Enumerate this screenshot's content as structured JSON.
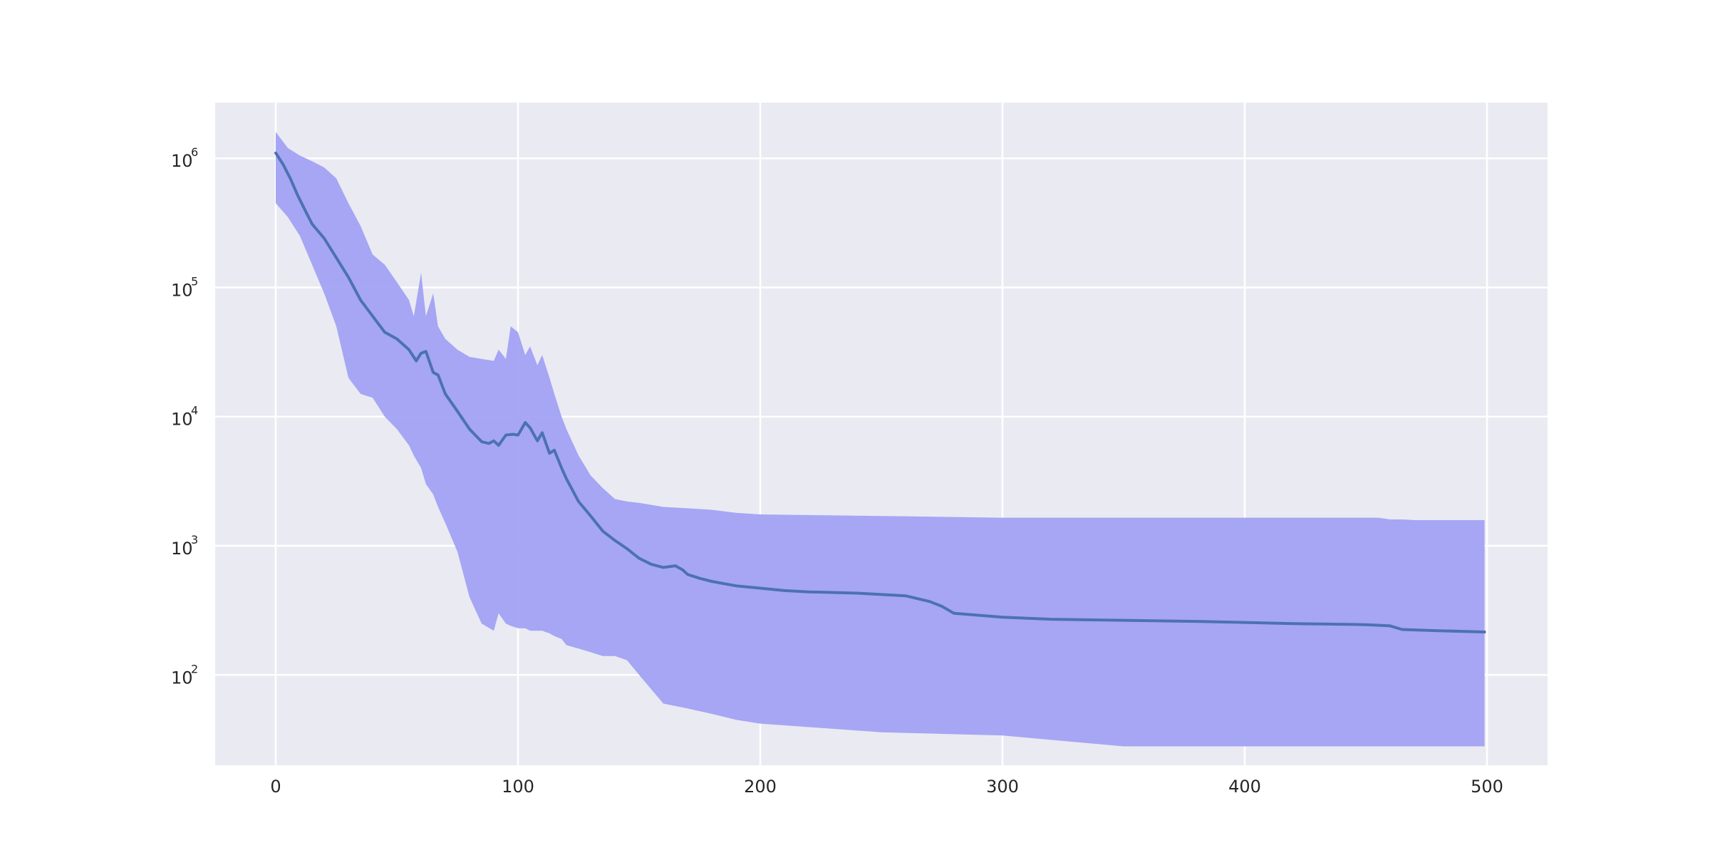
{
  "chart_data": {
    "type": "line",
    "title": "",
    "xlabel": "",
    "ylabel": "",
    "xlim": [
      -25,
      525
    ],
    "ylim": [
      20,
      2700000
    ],
    "y_scale": "log",
    "grid": true,
    "legend": "none",
    "x_ticks": [
      0,
      100,
      200,
      300,
      400,
      500
    ],
    "x_tick_labels": [
      "0",
      "100",
      "200",
      "300",
      "400",
      "500"
    ],
    "y_ticks": [
      {
        "value": 100,
        "base": "10",
        "exp": "2"
      },
      {
        "value": 1000,
        "base": "10",
        "exp": "3"
      },
      {
        "value": 10000,
        "base": "10",
        "exp": "4"
      },
      {
        "value": 100000,
        "base": "10",
        "exp": "5"
      },
      {
        "value": 1000000,
        "base": "10",
        "exp": "6"
      }
    ],
    "colors": {
      "background": "#eaeaf2",
      "grid": "#ffffff",
      "band": "#a0a0f5",
      "line": "#4c72b0"
    },
    "series": [
      {
        "kind": "line",
        "x": [
          0,
          3,
          6,
          9,
          12,
          15,
          20,
          25,
          30,
          35,
          40,
          45,
          50,
          55,
          58,
          60,
          62,
          65,
          67,
          70,
          75,
          80,
          85,
          88,
          90,
          92,
          95,
          98,
          100,
          103,
          105,
          108,
          110,
          113,
          115,
          118,
          120,
          125,
          130,
          135,
          140,
          145,
          150,
          155,
          160,
          165,
          168,
          170,
          175,
          180,
          190,
          200,
          210,
          220,
          240,
          260,
          270,
          275,
          280,
          300,
          320,
          350,
          380,
          400,
          420,
          450,
          460,
          465,
          480,
          499
        ],
        "y": [
          1100000,
          900000,
          700000,
          520000,
          400000,
          310000,
          240000,
          170000,
          120000,
          80000,
          60000,
          45000,
          40000,
          33000,
          27000,
          31000,
          32000,
          22000,
          21000,
          15000,
          11000,
          8000,
          6400,
          6200,
          6500,
          6000,
          7200,
          7300,
          7200,
          9000,
          8200,
          6500,
          7500,
          5200,
          5500,
          4000,
          3300,
          2200,
          1700,
          1300,
          1100,
          950,
          800,
          720,
          680,
          700,
          650,
          600,
          560,
          530,
          490,
          470,
          450,
          440,
          430,
          410,
          370,
          340,
          300,
          280,
          270,
          265,
          260,
          255,
          250,
          245,
          240,
          225,
          220,
          215
        ]
      },
      {
        "kind": "band",
        "x": [
          0,
          5,
          10,
          15,
          20,
          25,
          30,
          35,
          40,
          45,
          50,
          55,
          57,
          60,
          62,
          65,
          67,
          70,
          75,
          80,
          85,
          90,
          92,
          95,
          97,
          100,
          103,
          105,
          108,
          110,
          113,
          115,
          118,
          120,
          125,
          130,
          135,
          140,
          145,
          150,
          160,
          170,
          180,
          190,
          200,
          250,
          300,
          350,
          400,
          450,
          455,
          460,
          465,
          470,
          499
        ],
        "y_upper": [
          1600000,
          1200000,
          1050000,
          950000,
          850000,
          700000,
          450000,
          300000,
          180000,
          150000,
          110000,
          80000,
          60000,
          130000,
          60000,
          90000,
          50000,
          40000,
          33000,
          29000,
          28000,
          27000,
          33000,
          28000,
          50000,
          45000,
          30000,
          35000,
          25000,
          30000,
          20000,
          15000,
          10000,
          8000,
          5000,
          3500,
          2800,
          2300,
          2200,
          2150,
          2000,
          1950,
          1900,
          1800,
          1750,
          1700,
          1650,
          1650,
          1650,
          1650,
          1650,
          1600,
          1600,
          1580,
          1580
        ],
        "y_lower": [
          450000,
          350000,
          250000,
          150000,
          90000,
          50000,
          20000,
          15000,
          14000,
          10000,
          8000,
          6000,
          5000,
          4000,
          3000,
          2500,
          2000,
          1500,
          900,
          400,
          250,
          220,
          300,
          250,
          240,
          230,
          230,
          220,
          220,
          220,
          210,
          200,
          190,
          170,
          160,
          150,
          140,
          140,
          130,
          100,
          60,
          55,
          50,
          45,
          42,
          36,
          34,
          28,
          28,
          28,
          28,
          28,
          28,
          28,
          28
        ]
      }
    ]
  }
}
